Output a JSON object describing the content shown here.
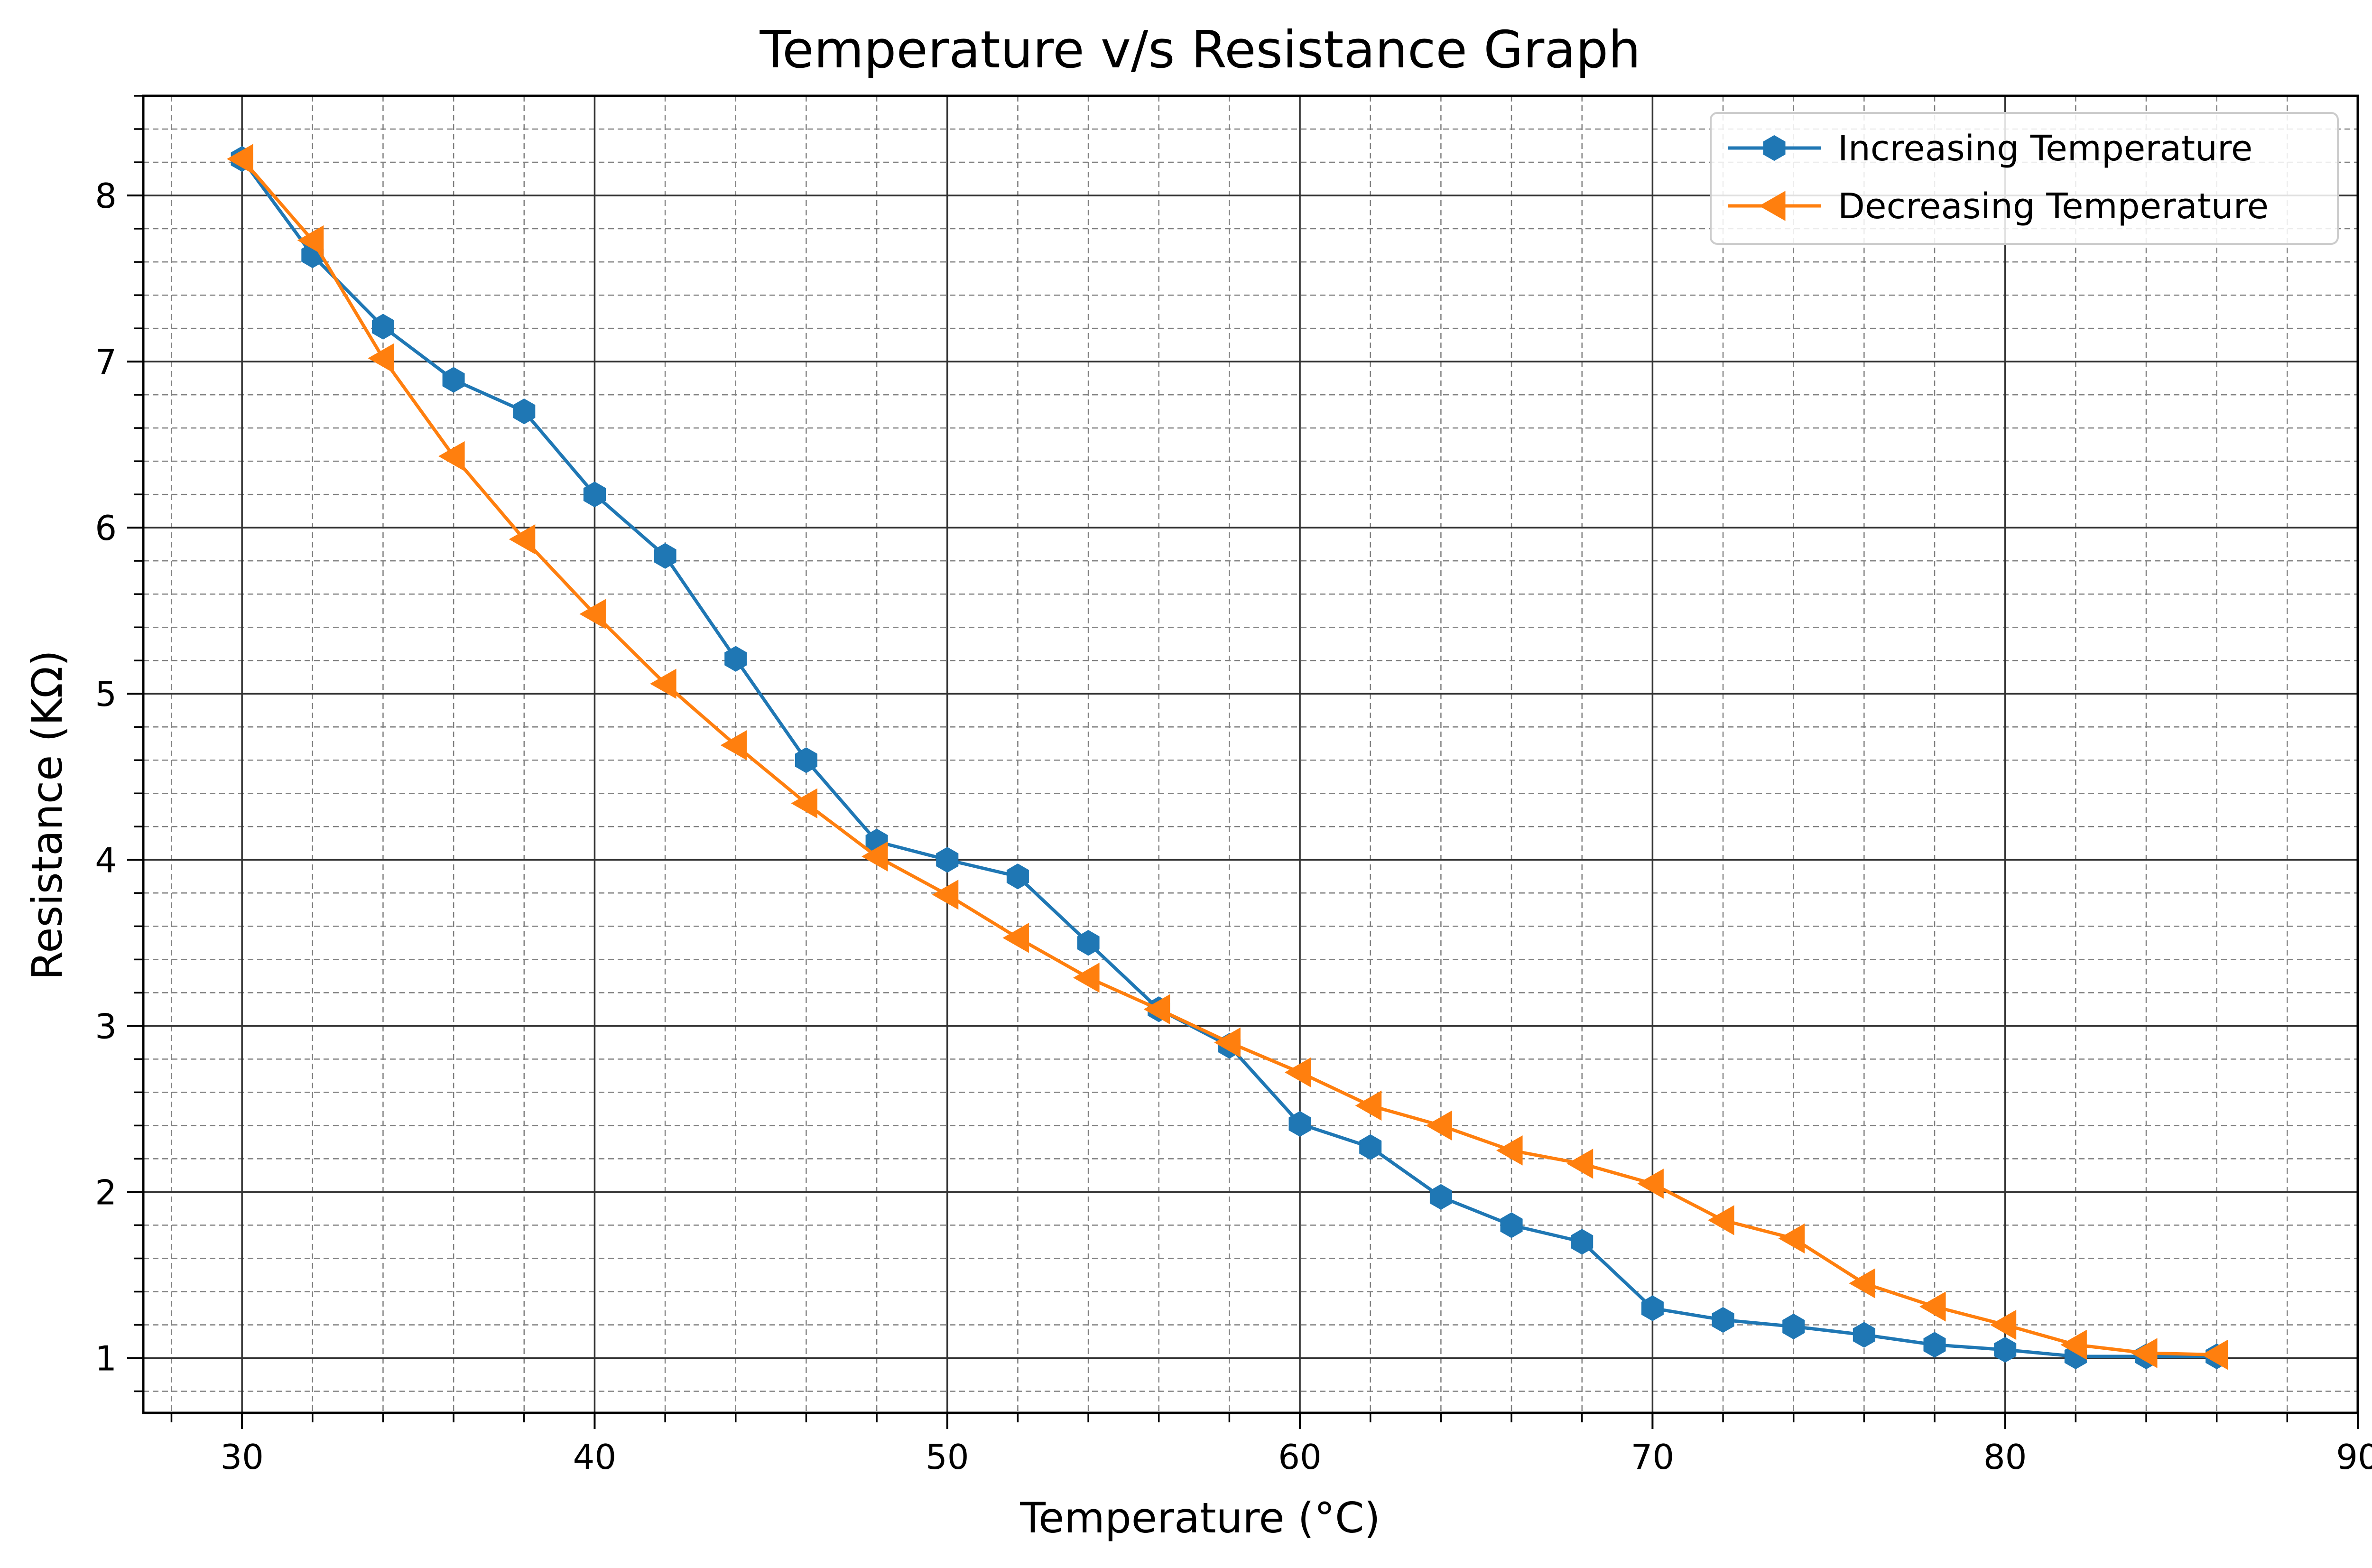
{
  "chart_data": {
    "type": "line",
    "title": "Temperature v/s Resistance Graph",
    "xlabel": "Temperature (°C)",
    "ylabel": "Resistance (KΩ)",
    "xlim": [
      27.2,
      90
    ],
    "ylim": [
      0.67,
      8.6
    ],
    "xticks": [
      30,
      40,
      50,
      60,
      70,
      80,
      90
    ],
    "yticks": [
      1,
      2,
      3,
      4,
      5,
      6,
      7,
      8
    ],
    "xtick_labels": [
      "30",
      "40",
      "50",
      "60",
      "70",
      "80",
      "90"
    ],
    "ytick_labels": [
      "1",
      "2",
      "3",
      "4",
      "5",
      "6",
      "7",
      "8"
    ],
    "grid": {
      "major": true,
      "minor": true
    },
    "legend_placement": "top-right",
    "series": [
      {
        "name": "Increasing Temperature",
        "color": "#1f77b4",
        "marker": "hexagon",
        "x": [
          30,
          32,
          34,
          36,
          38,
          40,
          42,
          44,
          46,
          48,
          50,
          52,
          54,
          56,
          58,
          60,
          62,
          64,
          66,
          68,
          70,
          72,
          74,
          76,
          78,
          80,
          82,
          84,
          86
        ],
        "y": [
          8.22,
          7.64,
          7.21,
          6.89,
          6.7,
          6.2,
          5.83,
          5.21,
          4.6,
          4.11,
          4.0,
          3.9,
          3.5,
          3.1,
          2.88,
          2.41,
          2.27,
          1.97,
          1.8,
          1.7,
          1.3,
          1.23,
          1.19,
          1.14,
          1.08,
          1.05,
          1.01,
          1.01,
          1.01
        ]
      },
      {
        "name": "Decreasing Temperature",
        "color": "#ff7f0e",
        "marker": "triangle-left",
        "x": [
          30,
          32,
          34,
          36,
          38,
          40,
          42,
          44,
          46,
          48,
          50,
          52,
          54,
          56,
          58,
          60,
          62,
          64,
          66,
          68,
          70,
          72,
          74,
          76,
          78,
          80,
          82,
          84,
          86
        ],
        "y": [
          8.22,
          7.73,
          7.02,
          6.43,
          5.93,
          5.48,
          5.06,
          4.69,
          4.34,
          4.02,
          3.79,
          3.53,
          3.29,
          3.1,
          2.9,
          2.72,
          2.52,
          2.4,
          2.25,
          2.17,
          2.05,
          1.83,
          1.72,
          1.45,
          1.31,
          1.2,
          1.08,
          1.03,
          1.02
        ]
      }
    ]
  }
}
